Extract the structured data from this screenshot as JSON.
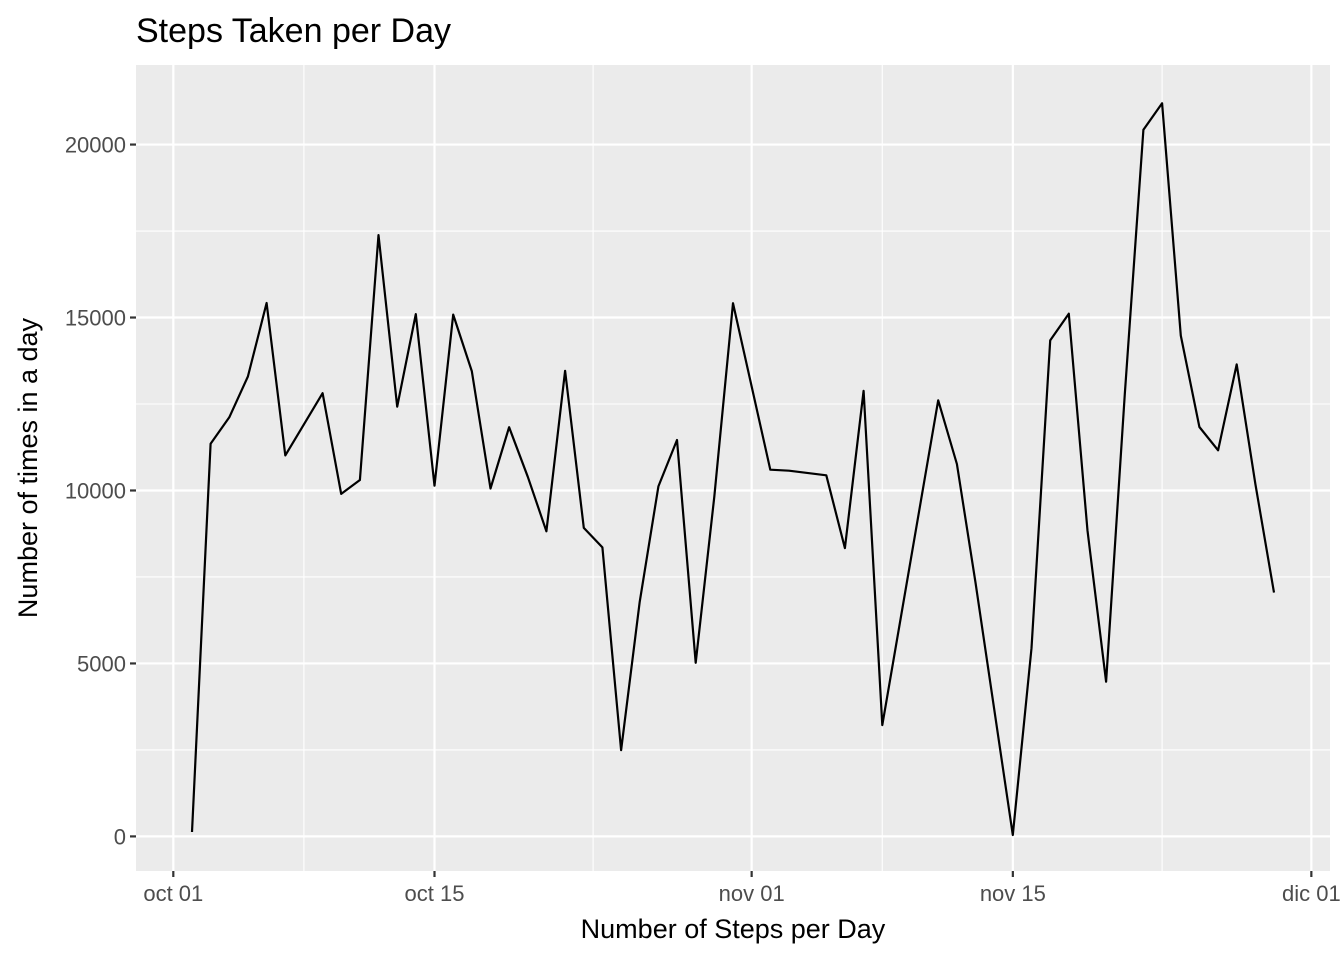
{
  "chart_data": {
    "type": "line",
    "title": "Steps Taken per Day",
    "xlabel": "Number of Steps per Day",
    "ylabel": "Number of times in a day",
    "grid": true,
    "legend": "none",
    "xlim": [
      "2012-09-29",
      "2012-12-02"
    ],
    "ylim": [
      -1000,
      22300
    ],
    "x_ticks": [
      {
        "date": "2012-10-01",
        "label": "oct 01"
      },
      {
        "date": "2012-10-15",
        "label": "oct 15"
      },
      {
        "date": "2012-11-01",
        "label": "nov 01"
      },
      {
        "date": "2012-11-15",
        "label": "nov 15"
      },
      {
        "date": "2012-12-01",
        "label": "dic 01"
      }
    ],
    "y_ticks": [
      {
        "value": 0,
        "label": "0"
      },
      {
        "value": 5000,
        "label": "5000"
      },
      {
        "value": 10000,
        "label": "10000"
      },
      {
        "value": 15000,
        "label": "15000"
      },
      {
        "value": 20000,
        "label": "20000"
      }
    ],
    "series": [
      {
        "color": "#000000",
        "x": [
          "2012-10-02",
          "2012-10-03",
          "2012-10-04",
          "2012-10-05",
          "2012-10-06",
          "2012-10-07",
          "2012-10-09",
          "2012-10-10",
          "2012-10-11",
          "2012-10-12",
          "2012-10-13",
          "2012-10-14",
          "2012-10-15",
          "2012-10-16",
          "2012-10-17",
          "2012-10-18",
          "2012-10-19",
          "2012-10-20",
          "2012-10-21",
          "2012-10-22",
          "2012-10-23",
          "2012-10-24",
          "2012-10-25",
          "2012-10-26",
          "2012-10-27",
          "2012-10-28",
          "2012-10-29",
          "2012-10-30",
          "2012-10-31",
          "2012-11-02",
          "2012-11-03",
          "2012-11-05",
          "2012-11-06",
          "2012-11-07",
          "2012-11-08",
          "2012-11-11",
          "2012-11-12",
          "2012-11-13",
          "2012-11-15",
          "2012-11-16",
          "2012-11-17",
          "2012-11-18",
          "2012-11-19",
          "2012-11-20",
          "2012-11-21",
          "2012-11-22",
          "2012-11-23",
          "2012-11-24",
          "2012-11-25",
          "2012-11-26",
          "2012-11-27",
          "2012-11-28",
          "2012-11-29"
        ],
        "y": [
          126,
          11352,
          12116,
          13294,
          15420,
          11015,
          12811,
          9900,
          10304,
          17382,
          12426,
          15098,
          10139,
          15084,
          13452,
          10056,
          11829,
          10395,
          8821,
          13460,
          8918,
          8355,
          2492,
          6778,
          10119,
          11458,
          5018,
          9819,
          15414,
          10600,
          10571,
          10439,
          8334,
          12883,
          3219,
          12608,
          10765,
          7336,
          41,
          5441,
          14339,
          15110,
          8841,
          4472,
          12787,
          20427,
          21194,
          14478,
          11834,
          11162,
          13646,
          10183,
          7047
        ]
      }
    ]
  }
}
